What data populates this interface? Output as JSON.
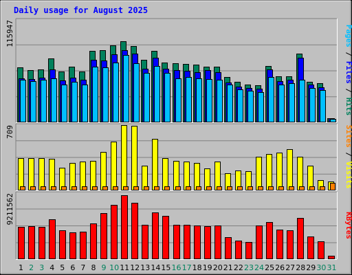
{
  "chart_data": {
    "type": "bar",
    "title": "Daily usage for August 2025",
    "categories": [
      "1",
      "2",
      "3",
      "4",
      "5",
      "6",
      "7",
      "8",
      "9",
      "10",
      "11",
      "12",
      "13",
      "14",
      "15",
      "16",
      "17",
      "18",
      "19",
      "20",
      "21",
      "22",
      "23",
      "24",
      "25",
      "26",
      "27",
      "28",
      "29",
      "30",
      "31"
    ],
    "weekend_days": [
      "2",
      "3",
      "9",
      "10",
      "16",
      "17",
      "23",
      "24",
      "30",
      "31"
    ],
    "panels": {
      "top": {
        "max_label": "115947",
        "ymax": 115947,
        "series": [
          {
            "name": "Hits",
            "color": "#00805c",
            "values": [
              62500,
              59000,
              60000,
              72000,
              57500,
              63000,
              57500,
              81000,
              82000,
              87000,
              92000,
              86000,
              71000,
              81000,
              68000,
              67000,
              66000,
              65000,
              63000,
              63000,
              51000,
              46000,
              43000,
              42000,
              64000,
              52000,
              52000,
              78000,
              46000,
              44000,
              5000
            ]
          },
          {
            "name": "Files",
            "color": "#0000ff",
            "values": [
              50000,
              49000,
              50500,
              60000,
              47500,
              50500,
              48000,
              71000,
              70000,
              77000,
              81500,
              77500,
              61000,
              73000,
              61000,
              59000,
              58000,
              57000,
              59000,
              57000,
              45500,
              40500,
              39000,
              38000,
              60000,
              47000,
              48000,
              73000,
              43000,
              40000,
              5000
            ]
          },
          {
            "name": "Pages",
            "color": "#00bfff",
            "values": [
              48000,
              47000,
              48000,
              50000,
              43000,
              46000,
              43000,
              63000,
              62000,
              68000,
              76000,
              67000,
              56000,
              64000,
              56000,
              50000,
              51000,
              50000,
              49000,
              48000,
              43000,
              37500,
              36000,
              34000,
              51000,
              42500,
              44000,
              48000,
              39000,
              36500,
              4200
            ]
          }
        ]
      },
      "middle": {
        "max_label": "709",
        "ymax": 709,
        "series": [
          {
            "name": "Visits",
            "color": "#ffff00",
            "values": [
              352,
              350,
              350,
              342,
              250,
              300,
              310,
              322,
              418,
              528,
              709,
              705,
              268,
              562,
              348,
              318,
              312,
              296,
              238,
              310,
              185,
              218,
              210,
              368,
              395,
              412,
              445,
              365,
              265,
              115,
              100
            ]
          },
          {
            "name": "Sites",
            "color": "#ff8000",
            "values": [
              46,
              46,
              46,
              46,
              46,
              46,
              46,
              46,
              46,
              46,
              46,
              46,
              46,
              46,
              46,
              46,
              46,
              46,
              46,
              46,
              46,
              46,
              46,
              46,
              46,
              46,
              46,
              46,
              46,
              46,
              80
            ]
          }
        ]
      },
      "bottom": {
        "max_label": "9211562",
        "ymax": 9211562,
        "series": [
          {
            "name": "KBytes",
            "color": "#ff0000",
            "values": [
              4550000,
              4650000,
              4500000,
              5600000,
              4050000,
              3700000,
              3800000,
              5000000,
              6450000,
              7600000,
              8950000,
              7900000,
              4750000,
              6550000,
              6050000,
              4750000,
              4800000,
              4700000,
              4600000,
              4700000,
              3050000,
              2600000,
              2400000,
              4700000,
              5200000,
              4150000,
              4050000,
              5800000,
              3150000,
              2500000,
              500000
            ]
          }
        ]
      }
    },
    "legend_top": [
      {
        "text": "Pages",
        "color": "#00bfff"
      },
      {
        "text": " / ",
        "color": "#000000"
      },
      {
        "text": "Files",
        "color": "#0000ff"
      },
      {
        "text": " / ",
        "color": "#000000"
      },
      {
        "text": "Hits",
        "color": "#00805c"
      }
    ],
    "legend_middle": [
      {
        "text": "Sites",
        "color": "#ff8000"
      },
      {
        "text": " / ",
        "color": "#000000"
      },
      {
        "text": "Visits",
        "color": "#ffff00"
      }
    ],
    "legend_bottom": [
      {
        "text": "KBytes",
        "color": "#ff0000"
      }
    ]
  }
}
